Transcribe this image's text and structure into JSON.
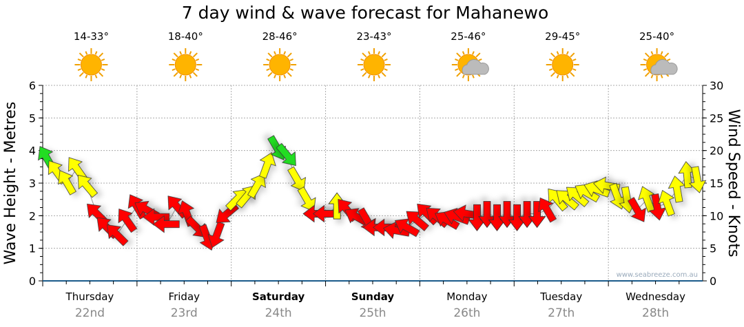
{
  "chart_data": {
    "type": "scatter",
    "title": "7 day wind & wave forecast for Mahanewo",
    "ylabel": "Wave Height - Metres",
    "y2label": "Wind Speed - Knots",
    "ylim": [
      0,
      6
    ],
    "y2lim": [
      0,
      30
    ],
    "yticks": [
      "0",
      "1",
      "2",
      "3",
      "4",
      "5",
      "6"
    ],
    "y2ticks": [
      "0",
      "5",
      "10",
      "15",
      "20",
      "25",
      "30"
    ],
    "watermark": "www.seabreeze.com.au",
    "days": [
      {
        "name": "Thursday",
        "date": "22nd",
        "temp": "14-33°",
        "weather": "sunny",
        "bold": false
      },
      {
        "name": "Friday",
        "date": "23rd",
        "temp": "18-40°",
        "weather": "sunny",
        "bold": false
      },
      {
        "name": "Saturday",
        "date": "24th",
        "temp": "28-46°",
        "weather": "sunny",
        "bold": true
      },
      {
        "name": "Sunday",
        "date": "25th",
        "temp": "23-43°",
        "weather": "sunny",
        "bold": true
      },
      {
        "name": "Monday",
        "date": "26th",
        "temp": "25-46°",
        "weather": "partly-cloudy",
        "bold": false
      },
      {
        "name": "Tuesday",
        "date": "27th",
        "temp": "29-45°",
        "weather": "sunny",
        "bold": false
      },
      {
        "name": "Wednesday",
        "date": "28th",
        "temp": "25-40°",
        "weather": "partly-cloudy",
        "bold": false
      }
    ],
    "colors": {
      "g": "#22dd22",
      "y": "#ffff00",
      "r": "#ff0000"
    },
    "wind": [
      [
        18.8,
        -30,
        "g"
      ],
      [
        16.7,
        -35,
        "y"
      ],
      [
        15.1,
        -30,
        "y"
      ],
      [
        17.2,
        -35,
        "y"
      ],
      [
        14.6,
        -40,
        "y"
      ],
      [
        10.3,
        -45,
        "r"
      ],
      [
        8.2,
        -45,
        "r"
      ],
      [
        7.1,
        -45,
        "r"
      ],
      [
        9.3,
        -35,
        "r"
      ],
      [
        11.4,
        -30,
        "r"
      ],
      [
        10.9,
        -60,
        "r"
      ],
      [
        9.8,
        -90,
        "r"
      ],
      [
        8.7,
        -90,
        "r"
      ],
      [
        11.4,
        -40,
        "r"
      ],
      [
        10.3,
        -20,
        "r"
      ],
      [
        8.2,
        135,
        "r"
      ],
      [
        6.7,
        160,
        "r"
      ],
      [
        7.1,
        200,
        "r"
      ],
      [
        10.3,
        230,
        "r"
      ],
      [
        12.5,
        45,
        "y"
      ],
      [
        13.0,
        40,
        "y"
      ],
      [
        14.6,
        30,
        "y"
      ],
      [
        17.7,
        20,
        "y"
      ],
      [
        20.4,
        150,
        "g"
      ],
      [
        19.3,
        140,
        "g"
      ],
      [
        15.6,
        150,
        "y"
      ],
      [
        12.5,
        150,
        "y"
      ],
      [
        10.3,
        -90,
        "r"
      ],
      [
        10.3,
        -90,
        "r"
      ],
      [
        11.4,
        0,
        "y"
      ],
      [
        10.9,
        -40,
        "r"
      ],
      [
        9.8,
        -60,
        "r"
      ],
      [
        9.3,
        150,
        "r"
      ],
      [
        8.2,
        -90,
        "r"
      ],
      [
        8.2,
        -90,
        "r"
      ],
      [
        7.7,
        -80,
        "r"
      ],
      [
        8.2,
        -60,
        "r"
      ],
      [
        9.3,
        -50,
        "r"
      ],
      [
        10.3,
        -45,
        "r"
      ],
      [
        9.8,
        -50,
        "r"
      ],
      [
        9.3,
        -60,
        "r"
      ],
      [
        9.8,
        -70,
        "r"
      ],
      [
        10.3,
        -80,
        "r"
      ],
      [
        9.8,
        180,
        "r"
      ],
      [
        10.3,
        180,
        "r"
      ],
      [
        9.8,
        180,
        "r"
      ],
      [
        10.3,
        180,
        "r"
      ],
      [
        9.8,
        180,
        "r"
      ],
      [
        10.3,
        180,
        "r"
      ],
      [
        10.3,
        180,
        "r"
      ],
      [
        10.9,
        -30,
        "r"
      ],
      [
        12.5,
        -40,
        "y"
      ],
      [
        12.5,
        -50,
        "y"
      ],
      [
        13.0,
        -50,
        "y"
      ],
      [
        13.5,
        -60,
        "y"
      ],
      [
        14.0,
        -70,
        "y"
      ],
      [
        14.6,
        -80,
        "y"
      ],
      [
        13.0,
        160,
        "y"
      ],
      [
        12.5,
        170,
        "y"
      ],
      [
        10.9,
        150,
        "r"
      ],
      [
        12.5,
        -20,
        "y"
      ],
      [
        11.4,
        170,
        "r"
      ],
      [
        11.9,
        -20,
        "y"
      ],
      [
        14.0,
        -10,
        "y"
      ],
      [
        16.2,
        -5,
        "y"
      ],
      [
        15.6,
        170,
        "y"
      ]
    ]
  }
}
